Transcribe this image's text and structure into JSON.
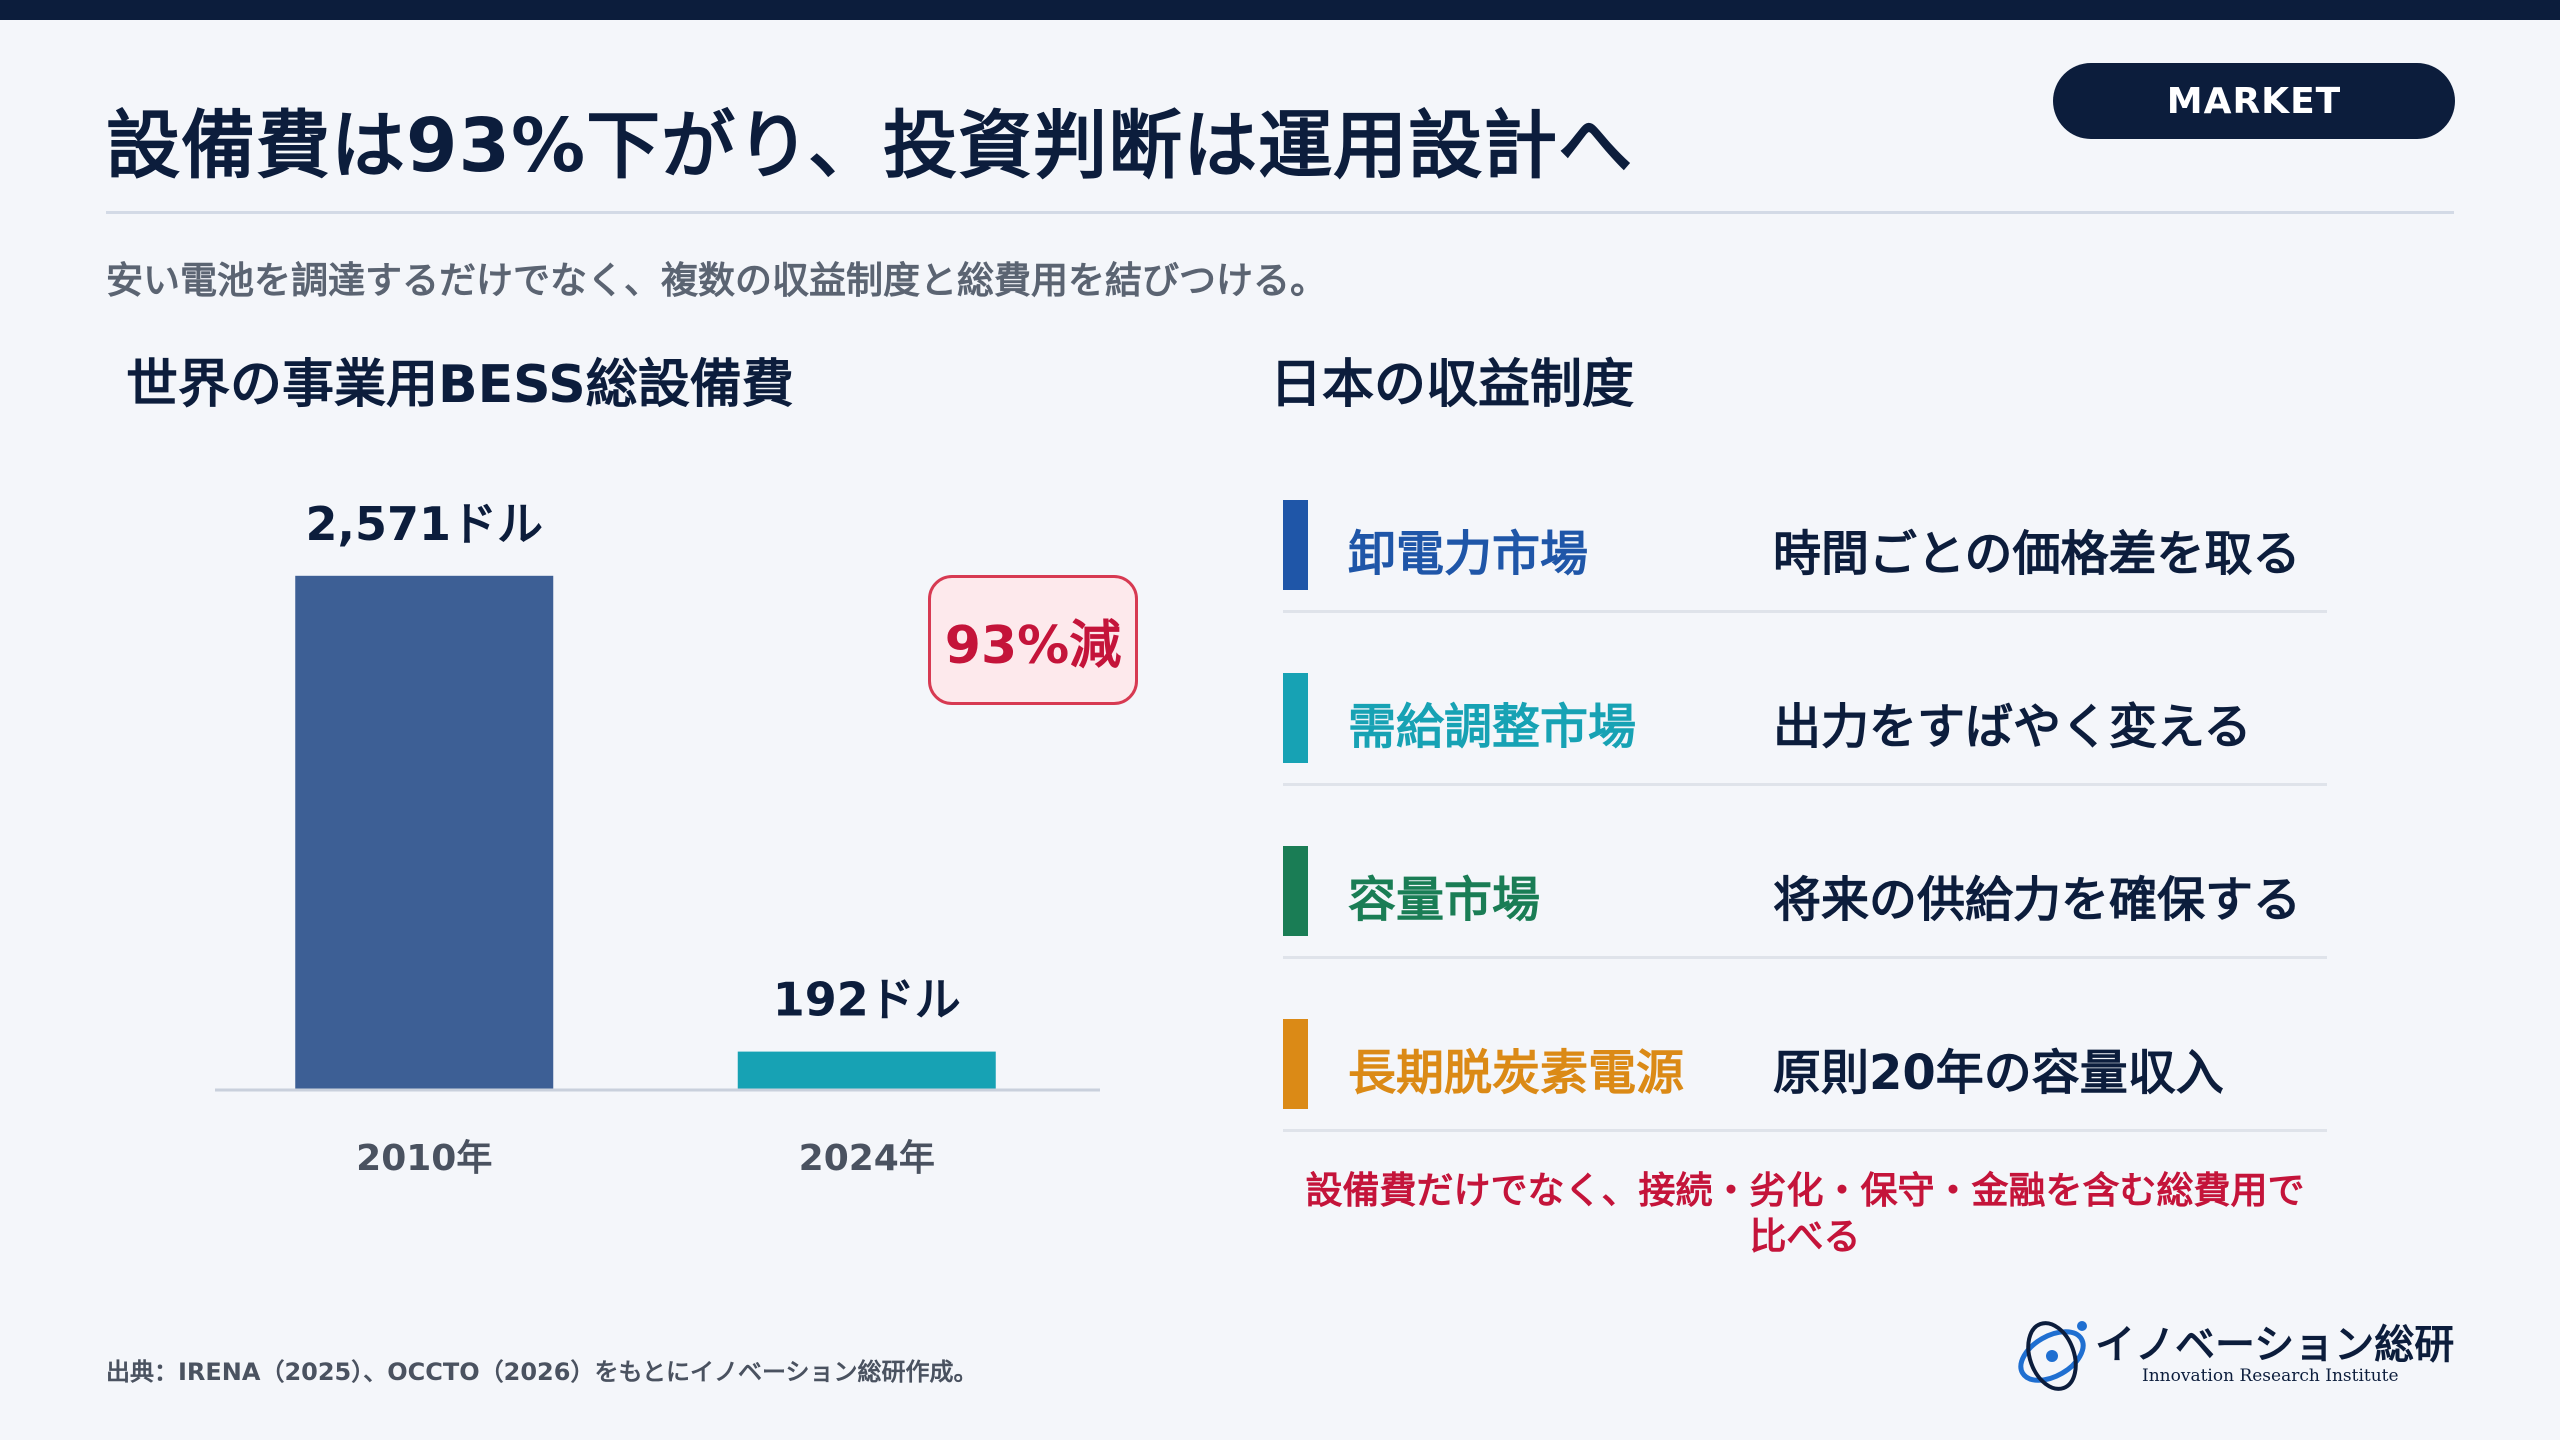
{
  "header": {
    "title": "設備費は93%下がり、投資判断は運用設計へ",
    "badge": "MARKET",
    "subtitle": "安い電池を調達するだけでなく、複数の収益制度と総費用を結びつける。"
  },
  "colors": {
    "navy": "#0c1d3c",
    "bar_2010": "#3d5f95",
    "bar_2024": "#17a2b4",
    "accent_red": "#c4143a"
  },
  "chart_section": {
    "title": "世界の事業用BESS総設備費",
    "reduction_label": "93%減"
  },
  "chart_data": {
    "type": "bar",
    "categories": [
      "2010年",
      "2024年"
    ],
    "values": [
      2571,
      192
    ],
    "data_labels": [
      "2,571ドル",
      "192ドル"
    ],
    "unit": "ドル",
    "bar_colors": [
      "#3d5f95",
      "#17a2b4"
    ],
    "ylim": [
      0,
      2900
    ],
    "grid": false,
    "title": "世界の事業用BESS総設備費"
  },
  "revenue_section": {
    "title": "日本の収益制度",
    "items": [
      {
        "name": "卸電力市場",
        "desc": "時間ごとの価格差を取る",
        "color": "#1f56a8"
      },
      {
        "name": "需給調整市場",
        "desc": "出力をすばやく変える",
        "color": "#17a2b4"
      },
      {
        "name": "容量市場",
        "desc": "将来の供給力を確保する",
        "color": "#1a7d55"
      },
      {
        "name": "長期脱炭素電源",
        "desc": "原則20年の容量収入",
        "color": "#db8a16"
      }
    ],
    "note_line1": "設備費だけでなく、接続・劣化・保守・金融を含む総費用で",
    "note_line2": "比べる"
  },
  "footer": {
    "source": "出典：IRENA（2025）、OCCTO（2026）をもとにイノベーション総研作成。",
    "logo_name": "イノベーション総研",
    "logo_sub": "Innovation Research Institute"
  }
}
